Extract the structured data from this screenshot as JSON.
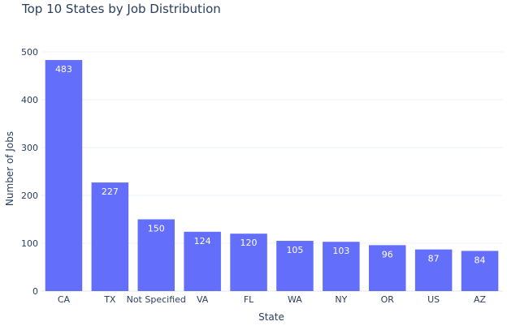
{
  "chart_data": {
    "type": "bar",
    "title": "Top 10 States by Job Distribution",
    "xlabel": "State",
    "ylabel": "Number of Jobs",
    "categories": [
      "CA",
      "TX",
      "Not Specified",
      "VA",
      "FL",
      "WA",
      "NY",
      "OR",
      "US",
      "AZ"
    ],
    "values": [
      483,
      227,
      150,
      124,
      120,
      105,
      103,
      96,
      87,
      84
    ],
    "ylim": [
      0,
      500
    ],
    "yticks": [
      0,
      100,
      200,
      300,
      400,
      500
    ],
    "grid": true,
    "legend": "none",
    "colors": {
      "bar": "#636efa",
      "bar_label": "#ffffff",
      "grid": "#ebf0f8",
      "axis_text": "#2a3f5f"
    }
  }
}
